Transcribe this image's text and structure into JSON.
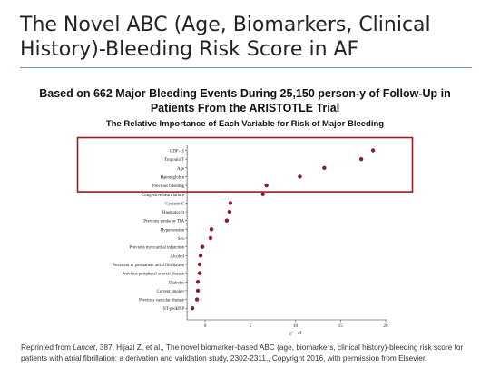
{
  "slide": {
    "title": "The Novel ABC (Age, Biomarkers, Clinical History)-Bleeding Risk Score in AF",
    "headline": "Based on 662 Major Bleeding Events During 25,150 person-y of Follow-Up in Patients From the ARISTOTLE Trial",
    "subheading": "The Relative Importance of Each Variable for Risk of Major Bleeding",
    "credit_prefix": "Reprinted from ",
    "credit_journal": "Lancet",
    "credit_rest": ", 387, Hijazi Z, et al., The novel biomarker-based ABC (age, biomarkers, clinical history)-bleeding risk score for patients with atrial fibrillation: a derivation and validation study, 2302-2311., Copyright 2016, with permission from Elsevier."
  },
  "colors": {
    "dot": "#8b1c2c",
    "highlight_box": "#9e1a22",
    "rule": "#6d93b8",
    "axis": "#333333"
  },
  "chart_data": {
    "type": "scatter",
    "title": "",
    "xlabel": "χ² – df",
    "ylabel": "",
    "xlim": [
      -2,
      20
    ],
    "xticks": [
      "0",
      "5",
      "10",
      "15",
      "20"
    ],
    "xtick_values": [
      0,
      5,
      10,
      15,
      20
    ],
    "grid": false,
    "categories": [
      "GDF-15",
      "Troponin T",
      "Age",
      "Haemoglobin",
      "Previous bleeding",
      "Congestive heart failure",
      "Cystatin C",
      "Haematocrit",
      "Previous stroke or TIA",
      "Hypertension",
      "Sex",
      "Previous myocardial infarction",
      "Alcohol",
      "Persistent or permanent atrial fibrillation",
      "Previous peripheral arterial disease",
      "Diabetes",
      "Current smoker",
      "Previous vascular disease",
      "NT-proBNP"
    ],
    "values": [
      18.6,
      17.3,
      13.2,
      10.5,
      6.8,
      6.4,
      2.8,
      2.7,
      2.4,
      0.7,
      0.6,
      -0.3,
      -0.5,
      -0.6,
      -0.6,
      -0.8,
      -0.8,
      -0.9,
      -1.4
    ],
    "highlighted_categories": [
      "GDF-15",
      "Troponin T",
      "Age",
      "Haemoglobin",
      "Previous bleeding"
    ]
  }
}
